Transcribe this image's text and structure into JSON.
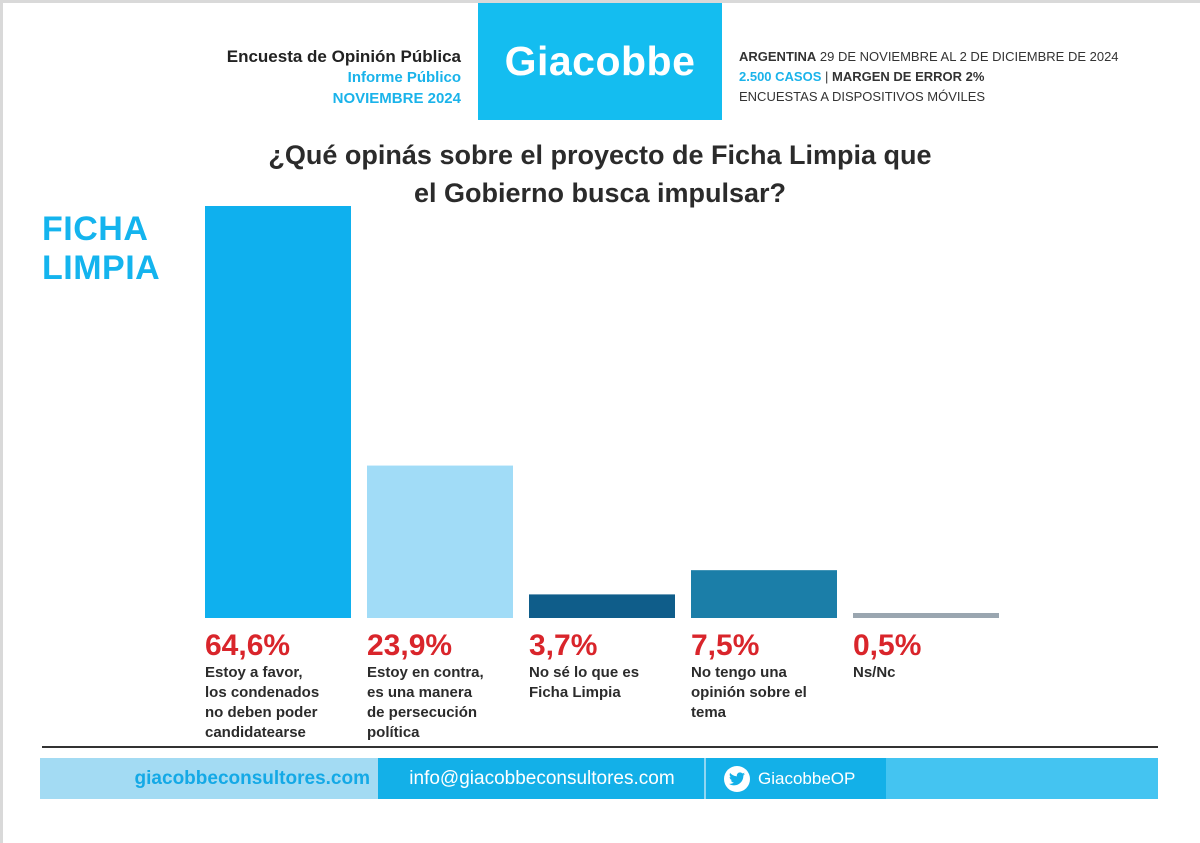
{
  "header": {
    "survey_title": "Encuesta de Opinión Pública",
    "report_type": "Informe Público",
    "month": "NOVIEMBRE 2024",
    "brand": "Giacobbe",
    "country": "ARGENTINA",
    "dates": "29 DE NOVIEMBRE AL 2 DE DICIEMBRE DE 2024",
    "cases": "2.500 CASOS",
    "separator": "|",
    "margin": "MARGEN DE ERROR 2%",
    "method": "ENCUESTAS A DISPOSITIVOS MÓVILES"
  },
  "side_title": {
    "line1": "FICHA",
    "line2": "LIMPIA"
  },
  "chart_data": {
    "type": "bar",
    "title": "¿Qué opinás sobre el proyecto de Ficha Limpia que el Gobierno busca impulsar?",
    "title_lines": [
      "¿Qué opinás sobre el proyecto de Ficha Limpia que",
      "el Gobierno busca impulsar?"
    ],
    "categories": [
      "Estoy a favor, los condenados no deben poder candidatearse",
      "Estoy en contra, es una manera de persecución política",
      "No sé lo que es Ficha Limpia",
      "No tengo una opinión sobre el tema",
      "Ns/Nc"
    ],
    "values": [
      64.6,
      23.9,
      3.7,
      7.5,
      0.5
    ],
    "value_labels": [
      "64,6%",
      "23,9%",
      "3,7%",
      "7,5%",
      "0,5%"
    ],
    "desc_lines": [
      [
        "Estoy a favor,",
        "los condenados",
        "no deben poder",
        "candidatearse"
      ],
      [
        "Estoy en contra,",
        "es una manera",
        "de persecución",
        "política"
      ],
      [
        "No sé lo que es",
        "Ficha Limpia"
      ],
      [
        "No tengo una",
        "opinión sobre el",
        "tema"
      ],
      [
        "Ns/Nc"
      ]
    ],
    "colors": [
      "#0fb0ee",
      "#a1dcf7",
      "#0f5d8a",
      "#1b7ea8",
      "#9aa6b0"
    ],
    "ylim": [
      0,
      64.6
    ],
    "xlabel": "",
    "ylabel": ""
  },
  "footer": {
    "website": "giacobbeconsultores.com",
    "email": "info@giacobbeconsultores.com",
    "twitter": "GiacobbeOP"
  }
}
